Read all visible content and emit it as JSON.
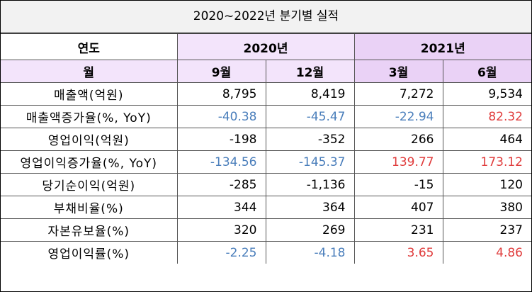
{
  "title": "2020~2022년 분기별 실적",
  "header": {
    "year_label": "연도",
    "years": [
      "2020년",
      "2021년"
    ],
    "month_label": "월",
    "months": [
      "9월",
      "12월",
      "3월",
      "6월"
    ]
  },
  "table": {
    "rows": [
      [
        "매출액(억원)",
        "8,795",
        "8,419",
        "7,272",
        "9,534"
      ],
      [
        "매출액증가율(%, YoY)",
        "-40.38",
        "-45.47",
        "-22.94",
        "82.32"
      ],
      [
        "영업이익(억원)",
        "-198",
        "-352",
        "266",
        "464"
      ],
      [
        "영업이익증가율(%, YoY)",
        "-134.56",
        "-145.37",
        "139.77",
        "173.12"
      ],
      [
        "당기순이익(억원)",
        "-285",
        "-1,136",
        "-15",
        "120"
      ],
      [
        "부채비율(%)",
        "344",
        "364",
        "407",
        "380"
      ],
      [
        "자본유보율(%)",
        "320",
        "269",
        "231",
        "237"
      ],
      [
        "영업이익률(%)",
        "-2.25",
        "-4.18",
        "3.65",
        "4.86"
      ]
    ]
  }
}
